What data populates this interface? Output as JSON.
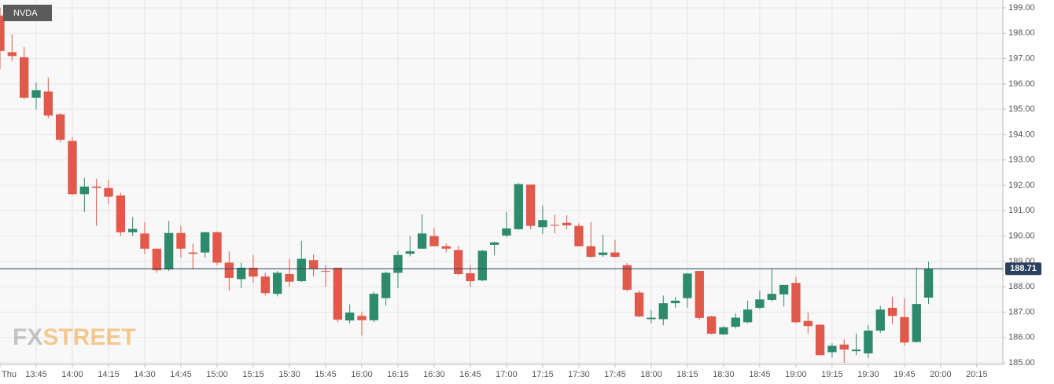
{
  "chart_data": {
    "type": "candlestick",
    "title": "NVDA",
    "watermark": [
      "FX",
      "STREET"
    ],
    "x": [
      810,
      815,
      820,
      825,
      830,
      835,
      840,
      845,
      850,
      855,
      860,
      865,
      870,
      875,
      880,
      885,
      890,
      895,
      900,
      905,
      910,
      915,
      920,
      925,
      930,
      935,
      940,
      945,
      950,
      955,
      960,
      965,
      970,
      975,
      980,
      985,
      990,
      995,
      1000,
      1005,
      1010,
      1015,
      1020,
      1025,
      1030,
      1035,
      1040,
      1045,
      1050,
      1055,
      1060,
      1065,
      1070,
      1075,
      1080,
      1085,
      1090,
      1095,
      1100,
      1105,
      1110,
      1115,
      1120,
      1125,
      1130,
      1135,
      1140,
      1145,
      1150,
      1155,
      1160,
      1165,
      1170,
      1175,
      1180,
      1185,
      1190,
      1195
    ],
    "open": [
      198.7,
      197.25,
      197.05,
      195.45,
      195.7,
      194.8,
      193.75,
      191.65,
      191.95,
      191.9,
      191.6,
      190.15,
      190.1,
      189.5,
      188.68,
      190.12,
      189.35,
      189.35,
      190.15,
      188.95,
      188.3,
      188.75,
      188.4,
      187.72,
      188.5,
      188.22,
      189.05,
      188.62,
      188.75,
      186.67,
      186.85,
      186.68,
      187.55,
      188.55,
      189.3,
      189.5,
      190.0,
      189.6,
      189.45,
      188.53,
      188.25,
      189.65,
      190.02,
      190.27,
      192.03,
      190.35,
      190.44,
      190.52,
      190.4,
      189.6,
      189.25,
      189.35,
      188.85,
      187.77,
      186.72,
      186.72,
      187.35,
      187.55,
      188.62,
      186.83,
      186.12,
      186.42,
      186.6,
      187.17,
      187.48,
      187.7,
      188.15,
      186.65,
      186.5,
      185.42,
      185.72,
      185.46,
      185.37,
      186.27,
      187.17,
      186.8,
      185.82,
      187.57
    ],
    "high": [
      199.0,
      197.95,
      197.45,
      196.05,
      196.25,
      194.85,
      193.9,
      192.3,
      192.25,
      192.2,
      191.7,
      190.75,
      190.55,
      189.5,
      190.6,
      190.4,
      189.7,
      190.17,
      190.17,
      189.4,
      188.95,
      189.25,
      188.55,
      188.62,
      189.1,
      189.8,
      189.27,
      188.85,
      188.75,
      187.3,
      187.0,
      187.8,
      188.6,
      189.4,
      190.0,
      190.85,
      190.32,
      189.7,
      189.6,
      188.85,
      189.45,
      189.78,
      190.95,
      192.1,
      192.03,
      191.2,
      190.85,
      190.82,
      190.5,
      190.55,
      190.05,
      189.85,
      188.93,
      187.85,
      187.07,
      187.65,
      187.6,
      188.55,
      188.62,
      186.85,
      186.45,
      186.95,
      187.45,
      187.85,
      188.7,
      188.08,
      188.38,
      186.98,
      186.52,
      185.77,
      185.93,
      186.15,
      186.48,
      187.25,
      187.6,
      187.55,
      188.75,
      188.99
    ],
    "low": [
      196.58,
      196.9,
      195.4,
      195.0,
      194.65,
      193.7,
      191.62,
      190.95,
      190.4,
      191.25,
      190.0,
      190.0,
      189.3,
      188.55,
      188.62,
      189.15,
      188.68,
      189.15,
      188.85,
      187.85,
      187.95,
      188.15,
      187.65,
      187.62,
      188.0,
      188.18,
      188.4,
      188.0,
      186.6,
      186.55,
      186.08,
      186.6,
      187.25,
      187.95,
      189.2,
      189.5,
      189.6,
      189.35,
      188.45,
      187.98,
      188.22,
      189.25,
      189.95,
      190.25,
      190.27,
      190.08,
      190.1,
      190.27,
      189.58,
      189.15,
      189.18,
      189.15,
      187.82,
      186.8,
      186.55,
      186.48,
      187.17,
      187.17,
      186.7,
      186.12,
      186.1,
      186.35,
      186.55,
      187.1,
      187.42,
      187.22,
      186.55,
      186.15,
      185.3,
      185.2,
      185.0,
      185.3,
      185.18,
      186.18,
      186.52,
      185.68,
      185.8,
      187.32
    ],
    "close": [
      197.3,
      197.1,
      195.45,
      195.75,
      194.75,
      193.8,
      191.65,
      191.95,
      191.9,
      191.55,
      190.15,
      190.28,
      189.5,
      188.65,
      190.12,
      189.5,
      189.3,
      190.15,
      188.95,
      188.35,
      188.75,
      188.4,
      187.75,
      188.55,
      188.2,
      189.1,
      188.7,
      188.6,
      186.7,
      186.98,
      186.68,
      187.72,
      188.55,
      189.25,
      189.4,
      190.1,
      189.6,
      189.5,
      188.5,
      188.22,
      189.42,
      189.75,
      190.3,
      192.05,
      190.4,
      190.63,
      190.42,
      190.42,
      189.6,
      189.18,
      189.35,
      189.18,
      187.88,
      186.83,
      186.78,
      187.35,
      187.45,
      188.52,
      186.77,
      186.15,
      186.4,
      186.78,
      187.1,
      187.5,
      187.72,
      188.07,
      186.6,
      186.45,
      185.3,
      185.67,
      185.52,
      185.52,
      186.27,
      187.1,
      186.85,
      185.8,
      187.32,
      188.71
    ],
    "up_color": "#2e8a6c",
    "down_color": "#e0594a",
    "last_price": 188.71,
    "last_color": "#2c3f5e",
    "xlim": [
      810,
      1225.8
    ],
    "ylim": [
      185,
      199
    ],
    "xticks": [
      {
        "value": 810,
        "label": "Thu"
      },
      {
        "value": 825,
        "label": "13:45"
      },
      {
        "value": 840,
        "label": "14:00"
      },
      {
        "value": 855,
        "label": "14:15"
      },
      {
        "value": 870,
        "label": "14:30"
      },
      {
        "value": 885,
        "label": "14:45"
      },
      {
        "value": 900,
        "label": "15:00"
      },
      {
        "value": 915,
        "label": "15:15"
      },
      {
        "value": 930,
        "label": "15:30"
      },
      {
        "value": 945,
        "label": "15:45"
      },
      {
        "value": 960,
        "label": "16:00"
      },
      {
        "value": 975,
        "label": "16:15"
      },
      {
        "value": 990,
        "label": "16:30"
      },
      {
        "value": 1005,
        "label": "16:45"
      },
      {
        "value": 1020,
        "label": "17:00"
      },
      {
        "value": 1035,
        "label": "17:15"
      },
      {
        "value": 1050,
        "label": "17:30"
      },
      {
        "value": 1065,
        "label": "17:45"
      },
      {
        "value": 1080,
        "label": "18:00"
      },
      {
        "value": 1095,
        "label": "18:15"
      },
      {
        "value": 1110,
        "label": "18:30"
      },
      {
        "value": 1125,
        "label": "18:45"
      },
      {
        "value": 1140,
        "label": "19:00"
      },
      {
        "value": 1155,
        "label": "19:15"
      },
      {
        "value": 1170,
        "label": "19:30"
      },
      {
        "value": 1185,
        "label": "19:45"
      },
      {
        "value": 1200,
        "label": "20:00"
      },
      {
        "value": 1215,
        "label": "20:15"
      }
    ],
    "yticks": [
      {
        "value": 185,
        "label": "185.00"
      },
      {
        "value": 186,
        "label": "186.00"
      },
      {
        "value": 187,
        "label": "187.00"
      },
      {
        "value": 188,
        "label": "188.00"
      },
      {
        "value": 189,
        "label": "189.00"
      },
      {
        "value": 190,
        "label": "190.00"
      },
      {
        "value": 191,
        "label": "191.00"
      },
      {
        "value": 192,
        "label": "192.00"
      },
      {
        "value": 193,
        "label": "193.00"
      },
      {
        "value": 194,
        "label": "194.00"
      },
      {
        "value": 195,
        "label": "195.00"
      },
      {
        "value": 196,
        "label": "196.00"
      },
      {
        "value": 197,
        "label": "197.00"
      },
      {
        "value": 198,
        "label": "198.00"
      },
      {
        "value": 199,
        "label": "199.00"
      }
    ],
    "grid": true
  }
}
